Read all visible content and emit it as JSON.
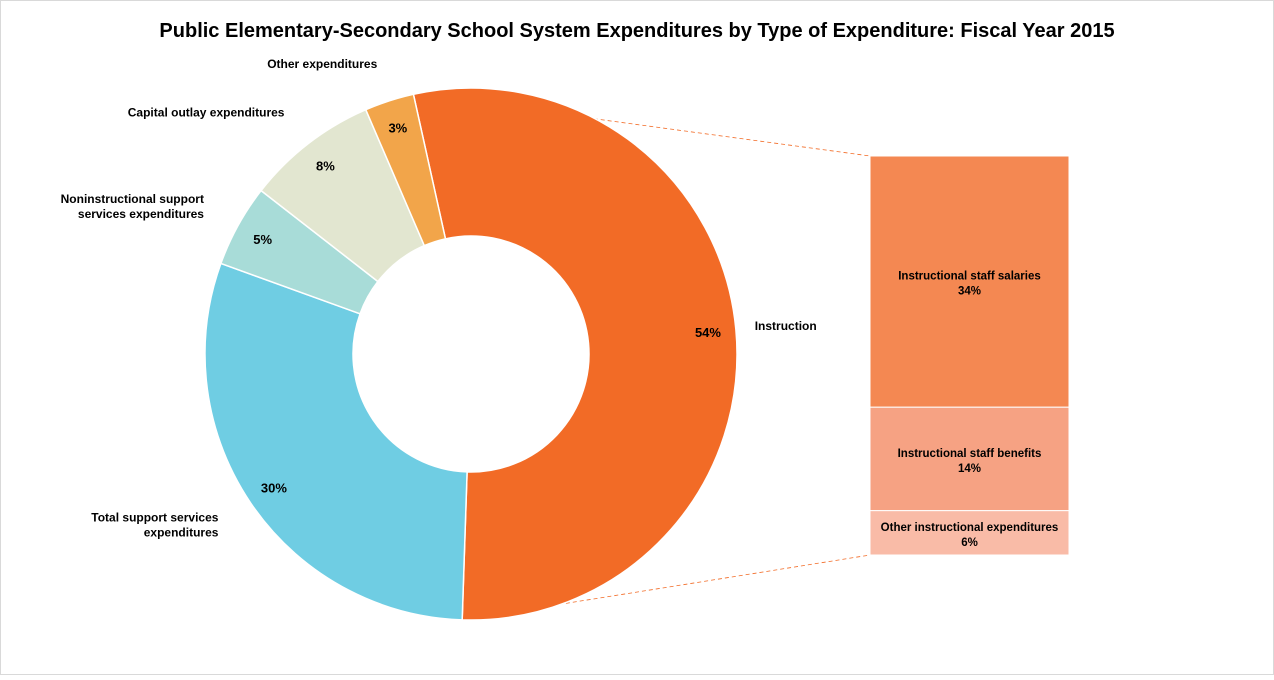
{
  "chart_data": {
    "type": "pie",
    "subtype": "doughnut-with-breakout-bar",
    "title": "Public Elementary-Secondary School System Expenditures by Type of Expenditure: Fiscal Year 2015",
    "slices": [
      {
        "label": "Instruction",
        "label_lines": [
          "Instruction"
        ],
        "value": 54,
        "value_label": "54%",
        "color": "#F26B26"
      },
      {
        "label": "Total support services expenditures",
        "label_lines": [
          "Total support services",
          "expenditures"
        ],
        "value": 30,
        "value_label": "30%",
        "color": "#6FCDE3"
      },
      {
        "label": "Noninstructional support services expenditures",
        "label_lines": [
          "Noninstructional support",
          "services expenditures"
        ],
        "value": 5,
        "value_label": "5%",
        "color": "#A8DCD8"
      },
      {
        "label": "Capital outlay expenditures",
        "label_lines": [
          "Capital outlay expenditures"
        ],
        "value": 8,
        "value_label": "8%",
        "color": "#E2E6D0"
      },
      {
        "label": "Other expenditures",
        "label_lines": [
          "Other expenditures"
        ],
        "value": 3,
        "value_label": "3%",
        "color": "#F2A54A"
      }
    ],
    "breakout": {
      "parent": "Instruction",
      "segments": [
        {
          "label": "Instructional staff salaries",
          "value": 34,
          "value_label": "34%",
          "color": "#F48852"
        },
        {
          "label": "Instructional staff benefits",
          "value": 14,
          "value_label": "14%",
          "color": "#F6A283"
        },
        {
          "label": "Other instructional expenditures",
          "value": 6,
          "value_label": "6%",
          "color": "#F9BBA7"
        }
      ]
    }
  }
}
